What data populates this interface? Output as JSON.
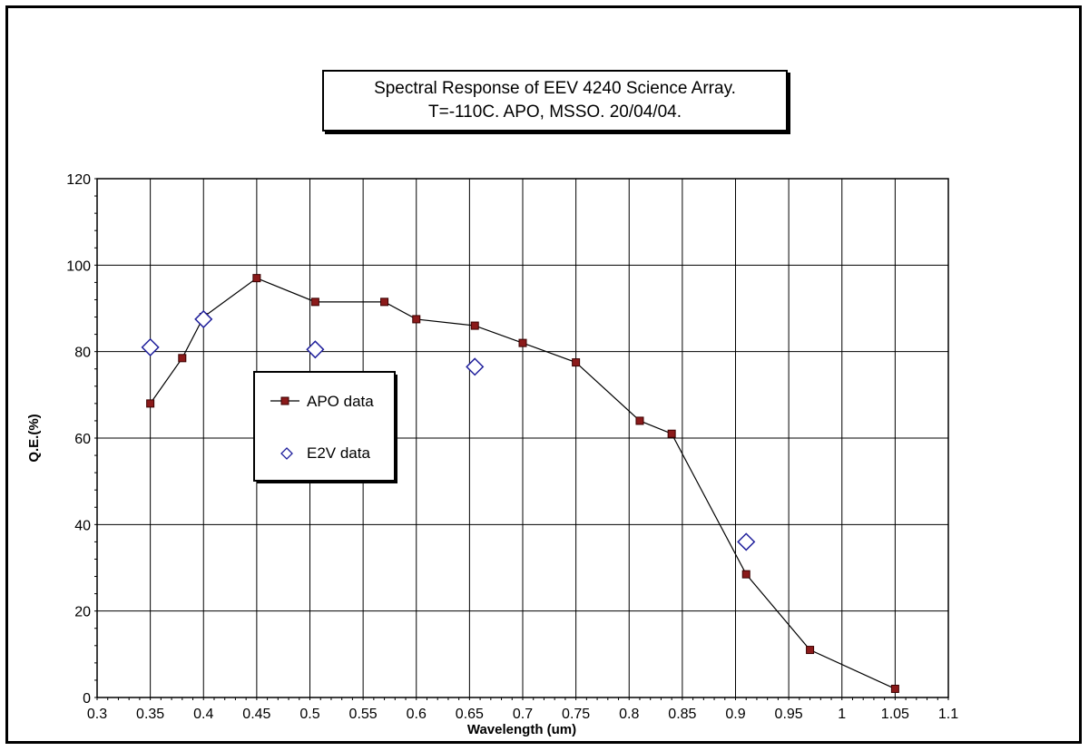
{
  "chart_data": {
    "type": "line",
    "title": "Spectral Response of EEV 4240 Science Array.",
    "subtitle": "T=-110C.  APO, MSSO. 20/04/04.",
    "xlabel": "Wavelength (um)",
    "ylabel": "Q.E.(%)",
    "xlim": [
      0.3,
      1.1
    ],
    "ylim": [
      0,
      120
    ],
    "xticks": [
      "0.3",
      "0.35",
      "0.4",
      "0.45",
      "0.5",
      "0.55",
      "0.6",
      "0.65",
      "0.7",
      "0.75",
      "0.8",
      "0.85",
      "0.9",
      "0.95",
      "1",
      "1.05",
      "1.1"
    ],
    "yticks": [
      "0",
      "20",
      "40",
      "60",
      "80",
      "100",
      "120"
    ],
    "grid": true,
    "legend_position": "left-middle",
    "series": [
      {
        "name": "APO data",
        "color": "#8b1a1a",
        "marker": "square",
        "line": true,
        "x": [
          0.35,
          0.38,
          0.4,
          0.45,
          0.505,
          0.57,
          0.6,
          0.655,
          0.7,
          0.75,
          0.81,
          0.84,
          0.91,
          0.97,
          1.05
        ],
        "y": [
          68,
          78.5,
          88,
          97,
          91.5,
          91.5,
          87.5,
          86,
          82,
          77.5,
          64,
          61,
          28.5,
          11,
          2
        ]
      },
      {
        "name": "E2V data",
        "color": "#1f1f9c",
        "marker": "diamond",
        "line": false,
        "x": [
          0.35,
          0.4,
          0.505,
          0.655,
          0.91
        ],
        "y": [
          81,
          87.5,
          80.5,
          76.5,
          36
        ]
      }
    ]
  }
}
